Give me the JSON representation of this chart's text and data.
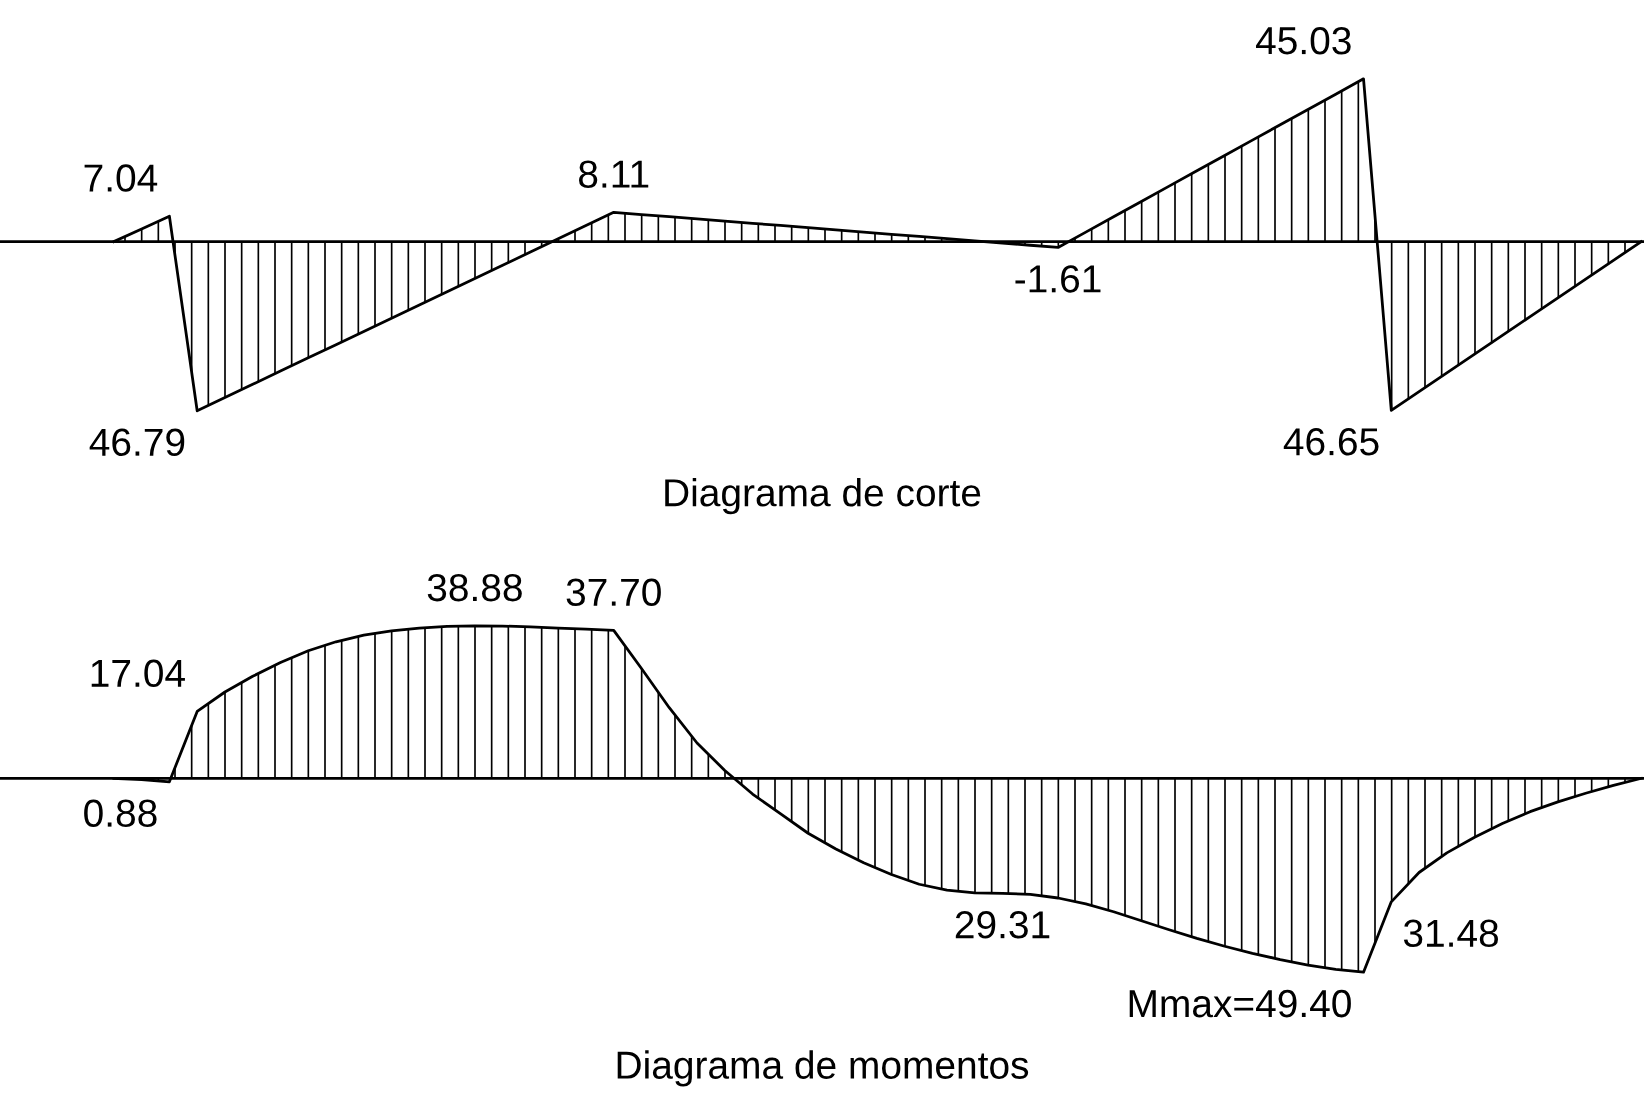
{
  "chart_data": [
    {
      "type": "area",
      "tick_labels": false,
      "title": "Diagrama de corte",
      "annotations": [
        "46.79",
        "46.65"
      ],
      "categories": [
        null,
        null,
        null,
        null,
        null,
        null,
        null,
        null,
        null,
        null,
        null,
        null,
        null,
        null,
        null,
        null,
        null,
        null,
        null,
        null,
        null,
        null,
        null,
        null,
        null,
        null,
        null,
        null,
        null,
        null,
        null,
        null,
        null,
        null,
        null,
        null,
        null,
        null,
        null,
        null,
        null,
        null,
        null,
        null,
        null,
        null,
        null,
        null,
        null,
        null,
        null,
        null,
        null,
        null,
        null,
        null
      ],
      "series": [
        {
          "color": "#000000",
          "values": [
            0,
            3.52,
            7.04,
            -46.79,
            -43.13,
            -39.47,
            -35.81,
            -32.15,
            -28.49,
            -24.83,
            -21.17,
            -17.51,
            -13.85,
            -10.19,
            -6.53,
            -2.87,
            0.79,
            4.45,
            8.11,
            7.5,
            6.9,
            6.29,
            5.68,
            5.07,
            4.47,
            3.86,
            3.25,
            2.64,
            2.04,
            1.43,
            0.82,
            0.21,
            -0.39,
            -1.0,
            -1.61,
            2.63,
            6.87,
            11.11,
            15.35,
            19.59,
            23.83,
            28.07,
            32.31,
            36.55,
            40.79,
            45.03,
            -46.65,
            -41.47,
            -36.28,
            -31.1,
            -25.92,
            -20.73,
            -15.55,
            -10.37,
            -5.18,
            0
          ],
          "value_labels": [
            null,
            null,
            "7.04",
            null,
            null,
            null,
            null,
            null,
            null,
            null,
            null,
            null,
            null,
            null,
            null,
            null,
            null,
            null,
            "8.11",
            null,
            null,
            null,
            null,
            null,
            null,
            null,
            null,
            null,
            null,
            null,
            null,
            null,
            null,
            null,
            "-1.61",
            null,
            null,
            null,
            null,
            null,
            null,
            null,
            null,
            null,
            null,
            "45.03",
            null,
            null,
            null,
            null,
            null,
            null,
            null,
            null,
            null,
            null
          ]
        }
      ]
    },
    {
      "type": "area",
      "tick_labels": false,
      "title": "Diagrama de momentos",
      "annotations": [
        "0.88",
        "29.31",
        "Mmax=49.40",
        "31.48"
      ],
      "categories": [
        null,
        null,
        null,
        null,
        null,
        null,
        null,
        null,
        null,
        null,
        null,
        null,
        null,
        null,
        null,
        null,
        null,
        null,
        null,
        null,
        null,
        null,
        null,
        null,
        null,
        null,
        null,
        null,
        null,
        null,
        null,
        null,
        null,
        null,
        null,
        null,
        null,
        null,
        null,
        null,
        null,
        null,
        null,
        null,
        null,
        null,
        null,
        null,
        null,
        null,
        null,
        null,
        null,
        null,
        null,
        null
      ],
      "series": [
        {
          "color": "#000000",
          "values": [
            0,
            -0.3,
            -0.88,
            17.04,
            22,
            26,
            29.5,
            32.5,
            34.8,
            36.5,
            37.6,
            38.3,
            38.7,
            38.88,
            38.8,
            38.6,
            38.3,
            38.0,
            37.7,
            28,
            18,
            9,
            2,
            -4,
            -9,
            -14,
            -18,
            -21.5,
            -24.5,
            -27,
            -28.5,
            -29.2,
            -29.31,
            -29.6,
            -30.5,
            -32,
            -34,
            -36.3,
            -38.6,
            -40.8,
            -42.8,
            -44.6,
            -46.2,
            -47.6,
            -48.7,
            -49.4,
            -31.48,
            -24,
            -19,
            -15,
            -11.5,
            -8.5,
            -6,
            -3.8,
            -1.8,
            0
          ],
          "value_labels": [
            null,
            null,
            null,
            "17.04",
            null,
            null,
            null,
            null,
            null,
            null,
            null,
            null,
            null,
            "38.88",
            null,
            null,
            null,
            null,
            "37.70",
            null,
            null,
            null,
            null,
            null,
            null,
            null,
            null,
            null,
            null,
            null,
            null,
            null,
            null,
            null,
            null,
            null,
            null,
            null,
            null,
            null,
            null,
            null,
            null,
            null,
            null,
            null,
            null,
            null,
            null,
            null,
            null,
            null,
            null,
            null,
            null,
            null
          ]
        }
      ]
    }
  ]
}
